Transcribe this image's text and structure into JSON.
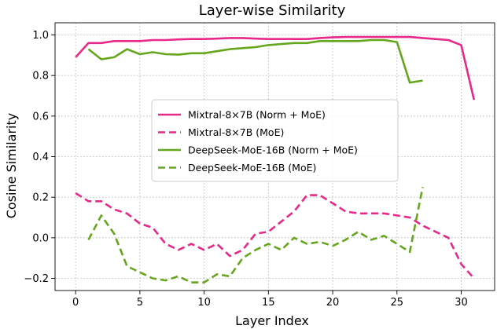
{
  "chart_data": {
    "type": "line",
    "title": "Layer-wise Similarity",
    "xlabel": "Layer Index",
    "ylabel": "Cosine Similarity",
    "xlim": [
      -1.6,
      32.6
    ],
    "ylim": [
      -0.26,
      1.06
    ],
    "xticks": [
      0,
      5,
      10,
      15,
      20,
      25,
      30
    ],
    "xtick_labels": [
      "0",
      "5",
      "10",
      "15",
      "20",
      "25",
      "30"
    ],
    "yticks": [
      -0.2,
      0.0,
      0.2,
      0.4,
      0.6,
      0.8,
      1.0
    ],
    "ytick_labels": [
      "−0.2",
      "0.0",
      "0.2",
      "0.4",
      "0.6",
      "0.8",
      "1.0"
    ],
    "grid": true,
    "legend_position": "center",
    "series": [
      {
        "name": "Mixtral-8×7B (Norm + MoE)",
        "color": "#e7298a",
        "dash": "solid",
        "x": [
          0,
          1,
          2,
          3,
          4,
          5,
          6,
          7,
          8,
          9,
          10,
          11,
          12,
          13,
          14,
          15,
          16,
          17,
          18,
          19,
          20,
          21,
          22,
          23,
          24,
          25,
          26,
          27,
          28,
          29,
          30,
          31
        ],
        "y": [
          0.89,
          0.96,
          0.96,
          0.97,
          0.97,
          0.97,
          0.975,
          0.975,
          0.978,
          0.98,
          0.98,
          0.982,
          0.985,
          0.985,
          0.982,
          0.98,
          0.98,
          0.98,
          0.98,
          0.985,
          0.988,
          0.99,
          0.99,
          0.99,
          0.99,
          0.99,
          0.99,
          0.985,
          0.98,
          0.975,
          0.95,
          0.68
        ]
      },
      {
        "name": "Mixtral-8×7B (MoE)",
        "color": "#e7298a",
        "dash": "dashed",
        "x": [
          0,
          1,
          2,
          3,
          4,
          5,
          6,
          7,
          8,
          9,
          10,
          11,
          12,
          13,
          14,
          15,
          16,
          17,
          18,
          19,
          20,
          21,
          22,
          23,
          24,
          25,
          26,
          27,
          28,
          29,
          30,
          31
        ],
        "y": [
          0.22,
          0.18,
          0.18,
          0.14,
          0.12,
          0.07,
          0.05,
          -0.03,
          -0.06,
          -0.03,
          -0.06,
          -0.03,
          -0.09,
          -0.06,
          0.02,
          0.03,
          0.08,
          0.13,
          0.21,
          0.21,
          0.17,
          0.13,
          0.12,
          0.12,
          0.12,
          0.11,
          0.1,
          0.06,
          0.03,
          0.0,
          -0.13,
          -0.2
        ]
      },
      {
        "name": "DeepSeek-MoE-16B (Norm + MoE)",
        "color": "#66a61e",
        "dash": "solid",
        "x": [
          1,
          2,
          3,
          4,
          5,
          6,
          7,
          8,
          9,
          10,
          11,
          12,
          13,
          14,
          15,
          16,
          17,
          18,
          19,
          20,
          21,
          22,
          23,
          24,
          25,
          26,
          27
        ],
        "y": [
          0.93,
          0.88,
          0.89,
          0.93,
          0.905,
          0.915,
          0.905,
          0.903,
          0.91,
          0.91,
          0.92,
          0.93,
          0.935,
          0.94,
          0.95,
          0.955,
          0.96,
          0.96,
          0.97,
          0.97,
          0.97,
          0.97,
          0.975,
          0.975,
          0.965,
          0.765,
          0.775
        ]
      },
      {
        "name": "DeepSeek-MoE-16B (MoE)",
        "color": "#66a61e",
        "dash": "dashed",
        "x": [
          1,
          2,
          3,
          4,
          5,
          6,
          7,
          8,
          9,
          10,
          11,
          12,
          13,
          14,
          15,
          16,
          17,
          18,
          19,
          20,
          21,
          22,
          23,
          24,
          25,
          26,
          27
        ],
        "y": [
          -0.01,
          0.11,
          0.02,
          -0.14,
          -0.17,
          -0.2,
          -0.21,
          -0.19,
          -0.22,
          -0.22,
          -0.18,
          -0.19,
          -0.1,
          -0.06,
          -0.03,
          -0.06,
          0.0,
          -0.03,
          -0.02,
          -0.04,
          -0.01,
          0.03,
          -0.01,
          0.01,
          -0.03,
          -0.07,
          0.25
        ]
      }
    ]
  }
}
